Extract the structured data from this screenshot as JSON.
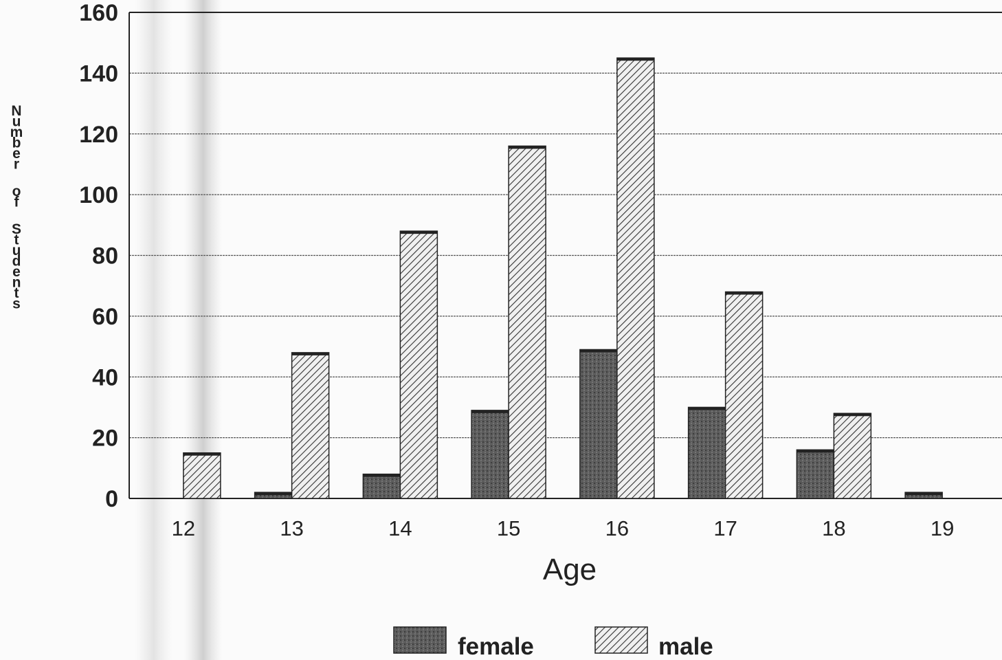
{
  "chart_data": {
    "type": "bar",
    "categories": [
      "12",
      "13",
      "14",
      "15",
      "16",
      "17",
      "18",
      "19"
    ],
    "series": [
      {
        "name": "female",
        "values": [
          0,
          2,
          8,
          29,
          49,
          30,
          16,
          2
        ]
      },
      {
        "name": "male",
        "values": [
          15,
          48,
          88,
          116,
          145,
          68,
          28,
          0
        ]
      }
    ],
    "title": "",
    "xlabel": "Age",
    "ylabel": "Number of Students",
    "ylim": [
      0,
      160
    ],
    "yticks": [
      "0",
      "20",
      "40",
      "60",
      "80",
      "100",
      "120",
      "140",
      "160"
    ],
    "grid": "horizontal",
    "legend_position": "bottom-center",
    "colors": {
      "female": "#5a5a5a",
      "male_hatch": "#333333",
      "male_fill": "#f0f0f0"
    }
  }
}
